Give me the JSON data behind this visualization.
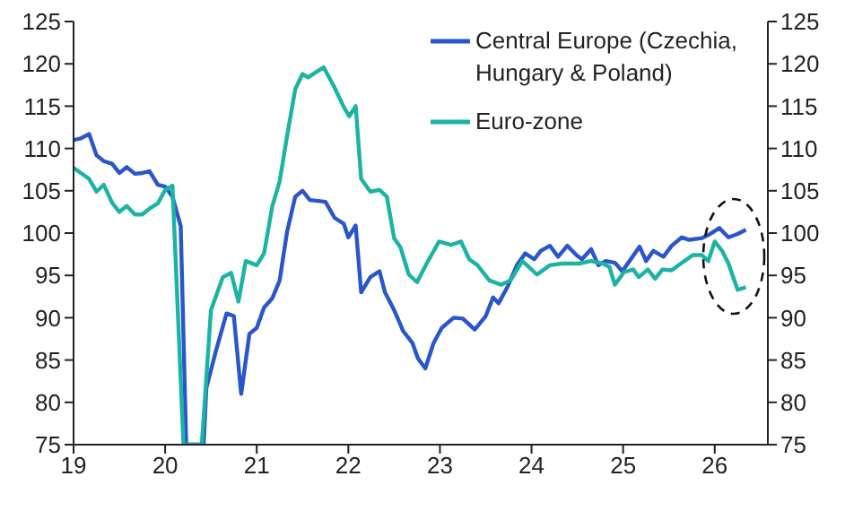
{
  "chart_data": {
    "type": "line",
    "legend": "top right",
    "xlim": [
      2019,
      2026.58
    ],
    "xticks": [
      {
        "value": 2019,
        "label": "19"
      },
      {
        "value": 2020,
        "label": "20"
      },
      {
        "value": 2021,
        "label": "21"
      },
      {
        "value": 2022,
        "label": "22"
      },
      {
        "value": 2023,
        "label": "23"
      },
      {
        "value": 2024,
        "label": "24"
      },
      {
        "value": 2025,
        "label": "25"
      },
      {
        "value": 2026,
        "label": "26"
      }
    ],
    "ylim": [
      75,
      125
    ],
    "yticks": [
      75,
      80,
      85,
      90,
      95,
      100,
      105,
      110,
      115,
      120,
      125
    ],
    "y2lim": [
      75,
      125
    ],
    "y2ticks": [
      75,
      80,
      85,
      90,
      95,
      100,
      105,
      110,
      115,
      120,
      125
    ],
    "series": [
      {
        "name": "Central Europe (Czechia, Hungary & Poland)",
        "color": "#2a55cc",
        "x": [
          2019.0,
          2019.08,
          2019.17,
          2019.25,
          2019.33,
          2019.42,
          2019.5,
          2019.58,
          2019.67,
          2019.75,
          2019.83,
          2019.92,
          2020.0,
          2020.08,
          2020.17,
          2020.23,
          2020.42,
          2020.45,
          2020.55,
          2020.67,
          2020.75,
          2020.83,
          2020.92,
          2021.0,
          2021.08,
          2021.17,
          2021.25,
          2021.33,
          2021.42,
          2021.5,
          2021.58,
          2021.67,
          2021.75,
          2021.85,
          2021.95,
          2022.0,
          2022.08,
          2022.14,
          2022.24,
          2022.34,
          2022.4,
          2022.5,
          2022.6,
          2022.7,
          2022.76,
          2022.84,
          2022.93,
          2023.02,
          2023.15,
          2023.25,
          2023.38,
          2023.5,
          2023.58,
          2023.64,
          2023.74,
          2023.84,
          2023.93,
          2024.03,
          2024.1,
          2024.2,
          2024.29,
          2024.39,
          2024.49,
          2024.55,
          2024.65,
          2024.73,
          2024.81,
          2024.91,
          2024.99,
          2025.07,
          2025.18,
          2025.25,
          2025.33,
          2025.44,
          2025.53,
          2025.64,
          2025.72,
          2025.86,
          2025.95,
          2026.05,
          2026.15,
          2026.25,
          2026.34
        ],
        "values": [
          111.0,
          111.2,
          111.7,
          109.2,
          108.5,
          108.2,
          107.1,
          107.8,
          107.0,
          107.1,
          107.3,
          105.7,
          105.5,
          104.3,
          100.8,
          75,
          75,
          81.7,
          85.9,
          90.5,
          90.2,
          81.0,
          88.1,
          88.8,
          91.2,
          92.3,
          94.4,
          100.1,
          104.3,
          105.0,
          103.9,
          103.8,
          103.7,
          101.8,
          101.1,
          99.5,
          100.9,
          93.0,
          94.8,
          95.5,
          93.0,
          90.9,
          88.4,
          87.0,
          85.2,
          84.0,
          87.0,
          88.8,
          90.0,
          89.9,
          88.6,
          90.2,
          92.4,
          91.7,
          93.7,
          96.2,
          97.6,
          96.9,
          97.9,
          98.5,
          97.2,
          98.5,
          97.4,
          96.9,
          98.1,
          96.2,
          96.7,
          96.5,
          95.5,
          96.7,
          98.4,
          96.7,
          97.9,
          97.2,
          98.5,
          99.5,
          99.2,
          99.4,
          99.9,
          100.6,
          99.5,
          99.9,
          100.4
        ]
      },
      {
        "name": "Euro-zone",
        "color": "#1bb3a2",
        "x": [
          2019.0,
          2019.08,
          2019.17,
          2019.25,
          2019.33,
          2019.42,
          2019.5,
          2019.58,
          2019.67,
          2019.75,
          2019.83,
          2019.92,
          2020.0,
          2020.08,
          2020.2,
          2020.4,
          2020.5,
          2020.63,
          2020.72,
          2020.8,
          2020.88,
          2021.0,
          2021.08,
          2021.17,
          2021.25,
          2021.33,
          2021.42,
          2021.5,
          2021.56,
          2021.66,
          2021.73,
          2021.84,
          2021.95,
          2022.01,
          2022.08,
          2022.14,
          2022.24,
          2022.34,
          2022.42,
          2022.5,
          2022.57,
          2022.66,
          2022.75,
          2022.86,
          2022.99,
          2023.12,
          2023.23,
          2023.32,
          2023.41,
          2023.54,
          2023.67,
          2023.77,
          2023.9,
          2024.06,
          2024.2,
          2024.33,
          2024.52,
          2024.65,
          2024.78,
          2024.85,
          2024.91,
          2025.01,
          2025.11,
          2025.17,
          2025.27,
          2025.35,
          2025.43,
          2025.53,
          2025.63,
          2025.76,
          2025.86,
          2025.93,
          2026.0,
          2026.08,
          2026.15,
          2026.25,
          2026.34
        ],
        "values": [
          107.7,
          107.1,
          106.4,
          104.9,
          105.7,
          103.6,
          102.5,
          103.2,
          102.2,
          102.2,
          102.9,
          103.5,
          105.1,
          105.6,
          75,
          75,
          90.9,
          94.8,
          95.3,
          91.9,
          96.7,
          96.2,
          97.6,
          103.2,
          106.1,
          111.4,
          117.0,
          118.8,
          118.4,
          119.1,
          119.6,
          117.4,
          114.9,
          113.8,
          115.0,
          106.4,
          104.9,
          105.1,
          104.3,
          99.4,
          98.3,
          95.1,
          94.2,
          96.5,
          99.0,
          98.6,
          99.0,
          96.9,
          96.2,
          94.4,
          93.9,
          94.4,
          96.7,
          95.1,
          96.2,
          96.4,
          96.4,
          96.7,
          96.4,
          96.0,
          93.9,
          95.4,
          95.7,
          94.8,
          95.7,
          94.6,
          95.7,
          95.6,
          96.4,
          97.4,
          97.4,
          96.7,
          99.0,
          97.9,
          96.4,
          93.3,
          93.6
        ]
      }
    ]
  }
}
